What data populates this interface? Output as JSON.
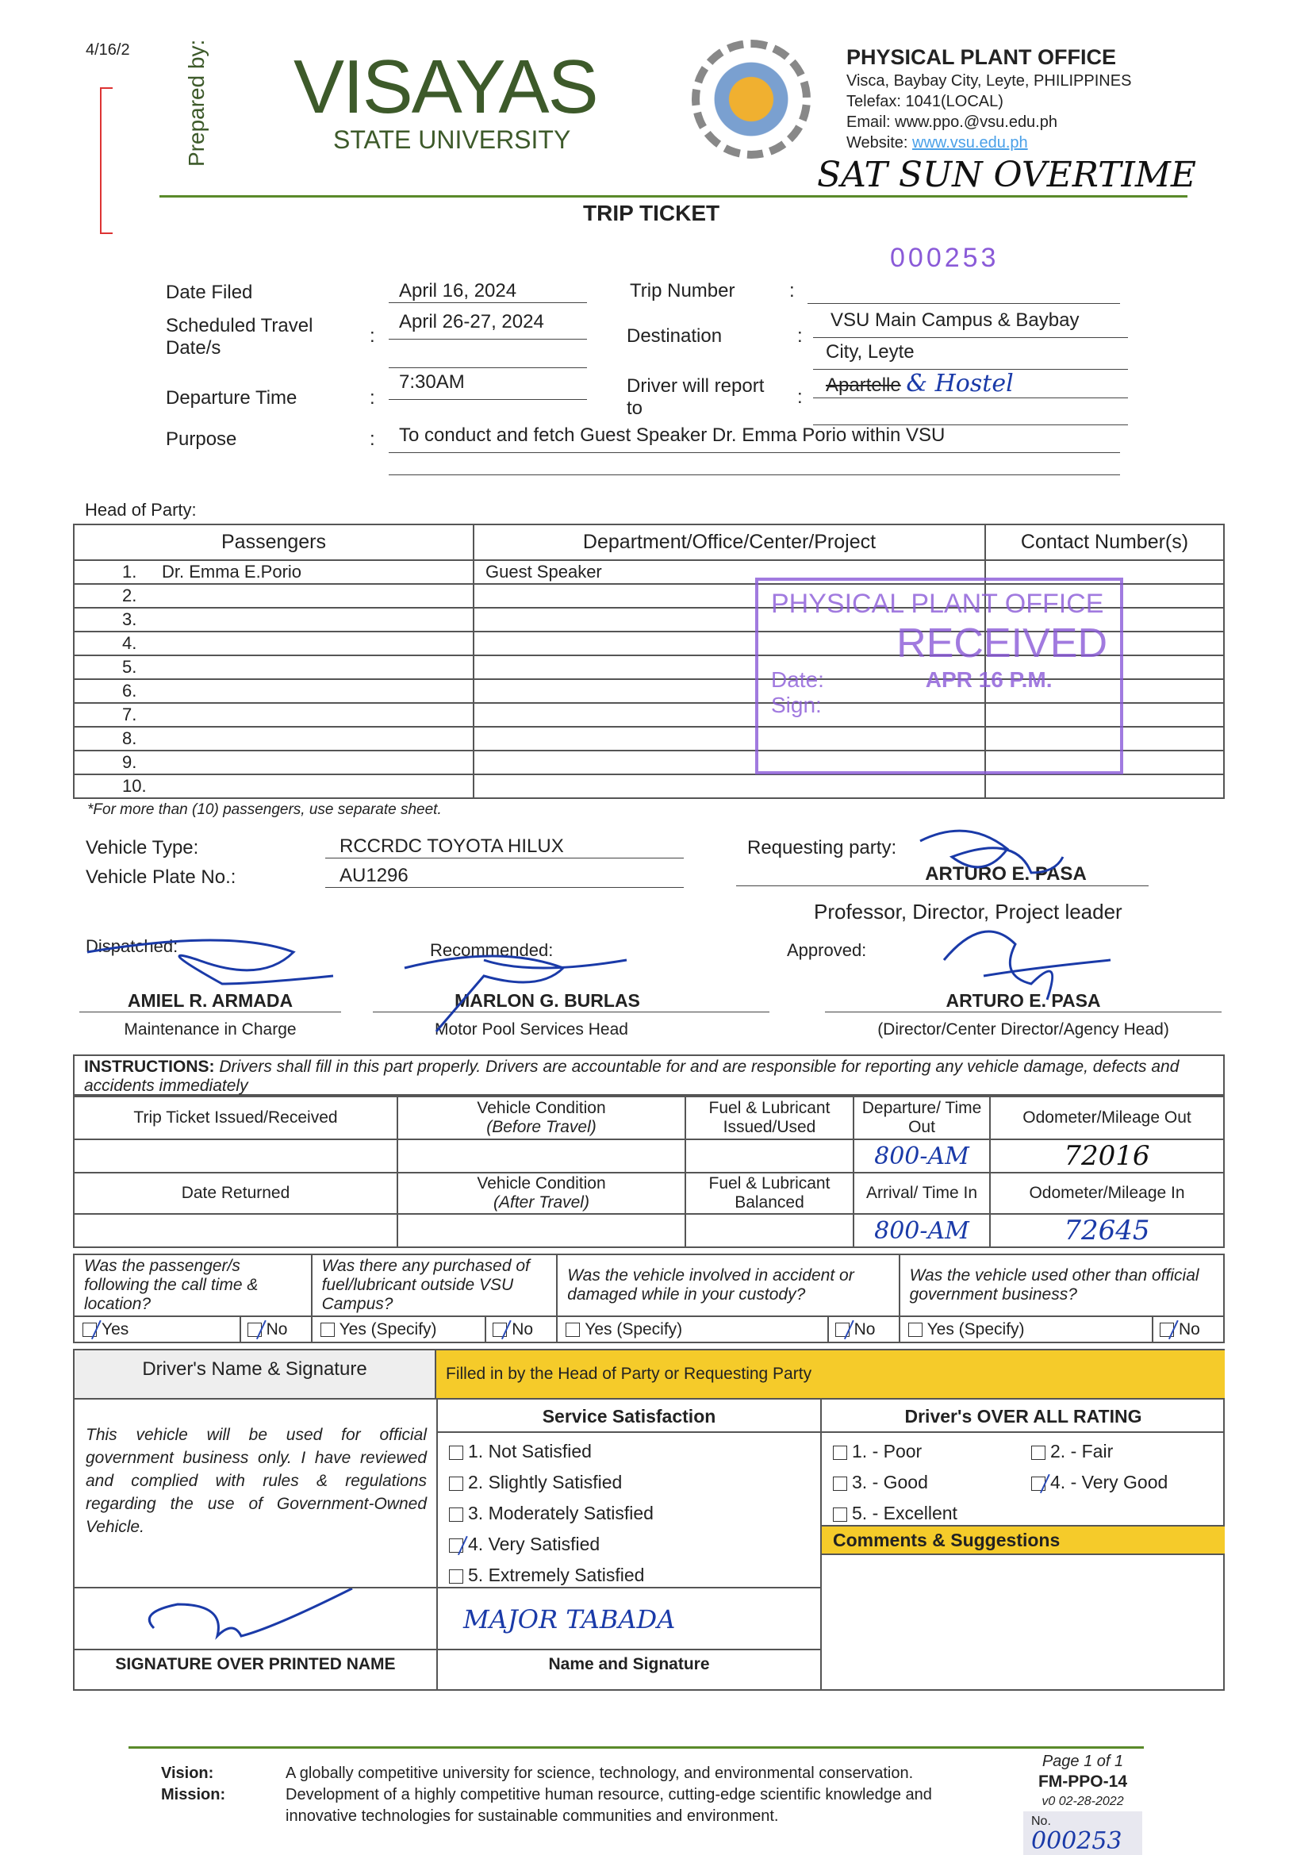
{
  "margin_note": "4/16/2",
  "prepared_by": "Prepared by:",
  "logo": {
    "name": "VISAYAS",
    "sub": "STATE UNIVERSITY",
    "seal_text": "PHYSICAL PLANT OFFICE"
  },
  "office": {
    "title": "PHYSICAL PLANT OFFICE",
    "address": "Visca, Baybay City, Leyte, PHILIPPINES",
    "telefax": "Telefax: 1041(LOCAL)",
    "email": "Email: www.ppo.@vsu.edu.ph",
    "website_label": "Website: ",
    "website": "www.vsu.edu.ph"
  },
  "handwritten_note": "SAT SUN OVERTIME",
  "title": "TRIP TICKET",
  "serial_stamp": "000253",
  "fields": {
    "date_filed_label": "Date Filed",
    "date_filed": "April 16, 2024",
    "travel_label": "Scheduled Travel Date/s",
    "travel": "April 26-27, 2024",
    "departure_label": "Departure Time",
    "departure": "7:30AM",
    "purpose_label": "Purpose",
    "purpose": "To conduct and fetch Guest Speaker Dr. Emma Porio within VSU",
    "trip_number_label": "Trip Number",
    "trip_number": "",
    "destination_label": "Destination",
    "destination_1": "VSU Main Campus & Baybay",
    "destination_2": "City, Leyte",
    "report_label": "Driver will report to",
    "report_struck": "Apartelle",
    "report_hand": "& Hostel",
    "colon": ":"
  },
  "head_of_party": "Head of Party:",
  "passengers": {
    "headers": [
      "Passengers",
      "Department/Office/Center/Project",
      "Contact Number(s)"
    ],
    "rows": [
      {
        "no": "1.",
        "name": "Dr. Emma E.Porio",
        "dept": "Guest Speaker",
        "contact": ""
      },
      {
        "no": "2.",
        "name": "",
        "dept": "",
        "contact": ""
      },
      {
        "no": "3.",
        "name": "",
        "dept": "",
        "contact": ""
      },
      {
        "no": "4.",
        "name": "",
        "dept": "",
        "contact": ""
      },
      {
        "no": "5.",
        "name": "",
        "dept": "",
        "contact": ""
      },
      {
        "no": "6.",
        "name": "",
        "dept": "",
        "contact": ""
      },
      {
        "no": "7.",
        "name": "",
        "dept": "",
        "contact": ""
      },
      {
        "no": "8.",
        "name": "",
        "dept": "",
        "contact": ""
      },
      {
        "no": "9.",
        "name": "",
        "dept": "",
        "contact": ""
      },
      {
        "no": "10.",
        "name": "",
        "dept": "",
        "contact": ""
      }
    ],
    "note": "*For more than (10) passengers, use separate sheet."
  },
  "received_stamp": {
    "line1": "PHYSICAL PLANT OFFICE",
    "line2": "RECEIVED",
    "date_label": "Date:",
    "date": "APR 16 P.M.",
    "sig_label": "Sign:"
  },
  "vehicle": {
    "type_label": "Vehicle Type:",
    "type": "RCCRDC TOYOTA HILUX",
    "plate_label": "Vehicle Plate No.:",
    "plate": "AU1296"
  },
  "requesting": {
    "label": "Requesting party:",
    "name": "ARTURO E. PASA",
    "title": "Professor, Director, Project leader"
  },
  "signatories": [
    {
      "label": "Dispatched:",
      "name": "AMIEL R. ARMADA",
      "title": "Maintenance in Charge"
    },
    {
      "label": "Recommended:",
      "name": "MARLON G. BURLAS",
      "title": "Motor Pool Services Head"
    },
    {
      "label": "Approved:",
      "name": "ARTURO E. PASA",
      "title": "(Director/Center Director/Agency Head)"
    }
  ],
  "instructions": {
    "bold": "INSTRUCTIONS:",
    "text": " Drivers shall fill in this part properly.  Drivers are accountable for and are responsible for reporting any vehicle damage, defects and accidents immediately"
  },
  "log": {
    "row1": [
      "Trip Ticket Issued/Received",
      "Vehicle Condition",
      "(Before Travel)",
      "Fuel & Lubricant Issued/Used",
      "Departure/ Time Out",
      "Odometer/Mileage Out"
    ],
    "val1": {
      "time_out": "800-AM",
      "odometer_out": "72016"
    },
    "row2": [
      "Date Returned",
      "Vehicle Condition",
      "(After Travel)",
      "Fuel & Lubricant Balanced",
      "Arrival/ Time In",
      "Odometer/Mileage In"
    ],
    "val2": {
      "time_in": "800-AM",
      "odometer_in": "72645"
    }
  },
  "questions": [
    {
      "q": "Was the passenger/s following the call time & location?",
      "yes": "Yes",
      "no": "No",
      "yes_checked": true,
      "no_checked": true
    },
    {
      "q": "Was there any purchased of fuel/lubricant outside VSU Campus?",
      "yes": "Yes (Specify)",
      "no": "No",
      "yes_checked": false,
      "no_checked": true
    },
    {
      "q": "Was the vehicle involved in accident or damaged while in your custody?",
      "yes": "Yes (Specify)",
      "no": "No",
      "yes_checked": false,
      "no_checked": true
    },
    {
      "q": "Was the vehicle used other than official government business?",
      "yes": "Yes (Specify)",
      "no": "No",
      "yes_checked": false,
      "no_checked": true
    }
  ],
  "driver": {
    "header": "Driver's Name & Signature",
    "statement": "This vehicle will be used for official government business only. I have reviewed and complied with rules & regulations regarding the use of Government-Owned Vehicle.",
    "sig_label": "SIGNATURE OVER PRINTED NAME"
  },
  "head_party_banner": "Filled in by the Head of Party or Requesting Party",
  "satisfaction": {
    "title": "Service Satisfaction",
    "options": [
      "1.  Not Satisfied",
      "2.  Slightly Satisfied",
      "3.  Moderately Satisfied",
      "4.  Very Satisfied",
      "5.  Extremely Satisfied"
    ],
    "selected": 4,
    "sig_label": "Name and Signature",
    "sig_hand": "MAJOR TABADA"
  },
  "rating": {
    "title": "Driver's OVER ALL RATING",
    "options": [
      "1. - Poor",
      "2. - Fair",
      "3. - Good",
      "4. - Very Good",
      "5. - Excellent"
    ],
    "selected": 4,
    "comments": "Comments & Suggestions"
  },
  "colors": {
    "yellow": "#f5cb2a",
    "green_rule": "#5a8a2a",
    "logo_green": "#3d5a2a",
    "stamp": "#8a5ad8",
    "ink": "#1a3aa8"
  },
  "footer": {
    "vision_label": "Vision:",
    "vision": "A globally competitive university for science, technology, and environmental conservation.",
    "mission_label": "Mission:",
    "mission": "Development of a highly competitive human resource, cutting-edge scientific knowledge and innovative technologies for sustainable communities and environment.",
    "page": "Page 1 of 1",
    "form": "FM-PPO-14",
    "version": "v0 02-28-2022",
    "no_label": "No.",
    "no": "000253"
  }
}
